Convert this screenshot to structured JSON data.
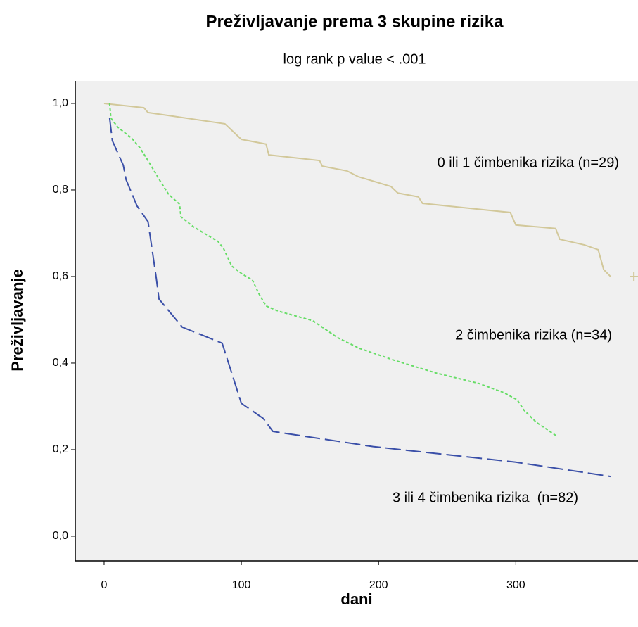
{
  "chart_data": {
    "type": "line",
    "title": "Preživljavanje prema 3 skupine rizika",
    "subtitle": "log rank p value < .001",
    "x_label": "dani",
    "y_label": "Preživljavanje",
    "xlim": [
      -21,
      389
    ],
    "ylim": [
      -0.057,
      1.052
    ],
    "xticks": [
      0,
      100,
      200,
      300
    ],
    "yticks": [
      {
        "value": 0,
        "label": "0,0"
      },
      {
        "value": 0.2,
        "label": "0,2"
      },
      {
        "value": 0.4,
        "label": "0,4"
      },
      {
        "value": 0.6,
        "label": "0,6"
      },
      {
        "value": 0.8,
        "label": "0,8"
      },
      {
        "value": 1,
        "label": "1,0"
      }
    ],
    "series": [
      {
        "name": "0 ili 1 čimbenika rizika (n=29)",
        "color": "#d2c89a",
        "x": [
          0,
          29,
          32,
          88,
          100,
          118,
          120,
          157,
          159,
          177,
          185,
          209,
          214,
          229,
          232,
          296,
          300,
          329,
          332,
          350,
          360,
          364,
          369
        ],
        "values": [
          1.0,
          0.99,
          0.979,
          0.953,
          0.917,
          0.906,
          0.881,
          0.868,
          0.855,
          0.844,
          0.831,
          0.808,
          0.793,
          0.784,
          0.769,
          0.748,
          0.719,
          0.711,
          0.686,
          0.673,
          0.662,
          0.616,
          0.6
        ],
        "censored": {
          "x": [
            386
          ],
          "values": [
            0.6
          ]
        }
      },
      {
        "name": "2 čimbenika rizika (n=34)",
        "color": "#66dd66",
        "x": [
          4,
          5,
          10,
          20,
          26,
          32,
          41,
          47,
          55,
          56,
          65,
          83,
          87,
          93,
          101,
          108,
          113,
          118,
          127,
          152,
          170,
          186,
          211,
          242,
          273,
          291,
          301,
          306,
          315,
          330
        ],
        "values": [
          1.0,
          0.966,
          0.945,
          0.92,
          0.898,
          0.868,
          0.82,
          0.79,
          0.767,
          0.738,
          0.715,
          0.681,
          0.665,
          0.624,
          0.605,
          0.592,
          0.559,
          0.532,
          0.52,
          0.498,
          0.459,
          0.434,
          0.407,
          0.377,
          0.353,
          0.332,
          0.315,
          0.291,
          0.263,
          0.231
        ]
      },
      {
        "name": "3 ili 4 čimbenika rizika  (n=82)",
        "color": "#3a4fa8",
        "x": [
          4,
          6,
          14,
          16,
          24,
          32,
          38,
          40,
          57,
          86,
          93,
          100,
          116,
          123,
          196,
          300,
          369
        ],
        "values": [
          0.967,
          0.914,
          0.857,
          0.824,
          0.763,
          0.727,
          0.597,
          0.548,
          0.483,
          0.446,
          0.377,
          0.307,
          0.272,
          0.242,
          0.207,
          0.171,
          0.138
        ]
      }
    ]
  }
}
